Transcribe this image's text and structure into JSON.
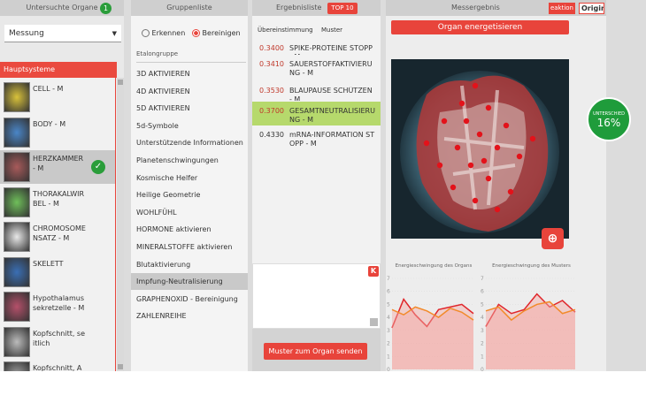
{
  "organs_panel": {
    "title": "Untersuchte Organe",
    "count": "1",
    "dropdown": "Messung",
    "section": "Hauptsysteme",
    "items": [
      "CELL - M",
      "BODY - M",
      "HERZKAMMER - M",
      "THORAKALWIRBEL - M",
      "CHROMOSOMENSATZ - M",
      "SKELETT",
      "Hypothalamussekretzelle - M",
      "Kopfschnitt, seitlich",
      "Kopfschnitt, Augenhöhe"
    ]
  },
  "group_panel": {
    "title": "Gruppenliste",
    "radio": [
      "Erkennen",
      "Bereinigen"
    ],
    "label": "Etalongruppe",
    "items": [
      "3D AKTIVIEREN",
      "4D AKTIVIEREN",
      "5D AKTIVIEREN",
      "5d-Symbole",
      "Unterstützende Informationen",
      "Planetenschwingungen",
      "Kosmische Helfer",
      "Heilige Geometrie",
      "WOHLFÜHL",
      "HORMONE aktivieren",
      "MINERALSTOFFE aktivieren",
      "Blutaktivierung",
      "Impfung-Neutralisierung",
      "GRAPHENOXID - Bereinigung",
      "ZAHLENREIHE"
    ]
  },
  "results_panel": {
    "title": "Ergebnisliste",
    "badge": "TOP 10",
    "columns": [
      "Übereinstimmung",
      "Muster"
    ],
    "rows": [
      [
        "0.3400",
        "SPIKE-PROTEINE STOPP - M"
      ],
      [
        "0.3410",
        "SAUERSTOFFAKTIVIERUNG - M"
      ],
      [
        "0.3530",
        "BLAUPAUSE SCHÜTZEN - M"
      ],
      [
        "0.3700",
        "GESAMTNEUTRALISIERUNG - M"
      ],
      [
        "0.4330",
        "mRNA-INFORMATION STOPP - M"
      ]
    ],
    "k_button": "K",
    "send_button": "Muster zum Organ senden"
  },
  "result_panel": {
    "title": "Messergebnis",
    "tabs": [
      "eaktion",
      "Origin"
    ],
    "button": "Organ energetisieren",
    "difference": {
      "label": "UNTERSCHIED",
      "value": "16%"
    }
  },
  "chart_data": [
    {
      "type": "line",
      "title": "Energieschwingung des Organs",
      "categories": [
        null,
        null,
        null,
        null,
        null,
        null,
        null,
        null
      ],
      "series": [
        {
          "color": "#e0262b",
          "values": [
            3.2,
            5.4,
            4.2,
            3.3,
            4.6,
            4.8,
            5.0,
            4.3
          ]
        },
        {
          "color": "#f28a2a",
          "values": [
            4.6,
            4.2,
            4.8,
            4.5,
            4.0,
            4.7,
            4.4,
            3.8
          ]
        }
      ],
      "ylim": [
        0,
        7
      ],
      "yticks": [
        0,
        1,
        2,
        3,
        4,
        5,
        6,
        7
      ],
      "grid": true
    },
    {
      "type": "line",
      "title": "Energieschwingung des Musters",
      "categories": [
        null,
        null,
        null,
        null,
        null,
        null,
        null,
        null
      ],
      "series": [
        {
          "color": "#e0262b",
          "values": [
            3.3,
            5.0,
            4.3,
            4.6,
            5.8,
            4.8,
            5.3,
            4.4
          ]
        },
        {
          "color": "#f28a2a",
          "values": [
            4.5,
            4.8,
            3.8,
            4.5,
            5.0,
            5.2,
            4.3,
            4.6
          ]
        }
      ],
      "ylim": [
        0,
        7
      ],
      "yticks": [
        0,
        1,
        2,
        3,
        4,
        5,
        6,
        7
      ],
      "grid": true
    }
  ]
}
